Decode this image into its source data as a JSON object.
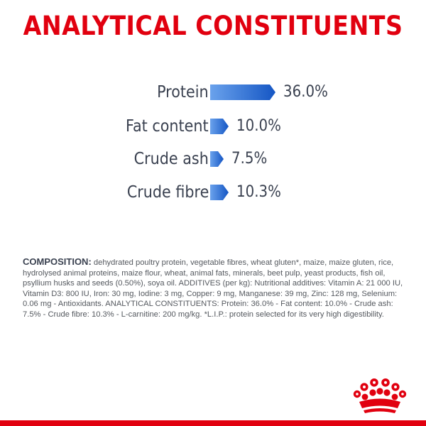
{
  "title": "ANALYTICAL CONSTITUENTS",
  "colors": {
    "brand_red": "#e1000f",
    "bar_blue_light": "#6aa2ec",
    "bar_blue_dark": "#1556c4",
    "text_dark": "#3a4150"
  },
  "chart_data": {
    "type": "bar",
    "categories": [
      "Protein",
      "Fat content",
      "Crude ash",
      "Crude fibre"
    ],
    "values": [
      36.0,
      10.0,
      7.5,
      10.3
    ],
    "value_labels": [
      "36.0%",
      "10.0%",
      "7.5%",
      "10.3%"
    ],
    "unit": "%",
    "orientation": "horizontal",
    "title": "ANALYTICAL CONSTITUENTS",
    "legend": "none",
    "grid": false
  },
  "composition": {
    "heading": "COMPOSITION:",
    "text": " dehydrated poultry protein, vegetable fibres, wheat gluten*, maize, maize gluten, rice, hydrolysed animal proteins, maize flour, wheat, animal fats, minerals, beet pulp, yeast products, fish oil, psyllium husks and seeds (0.50%), soya oil. ADDITIVES (per kg): Nutritional additives: Vitamin A: 21 000 IU, Vitamin D3: 800 IU, Iron: 30 mg, Iodine: 3 mg, Copper: 9 mg, Manganese: 39 mg, Zinc: 128 mg, Selenium: 0.06 mg - Antioxidants. ANALYTICAL CONSTITUENTS: Protein: 36.0% - Fat content: 10.0% - Crude ash: 7.5% - Crude fibre: 10.3% - L-carnitine: 200 mg/kg. *L.I.P.: protein selected for its very high digestibility."
  },
  "logo": {
    "icon": "royal-crown-icon"
  }
}
